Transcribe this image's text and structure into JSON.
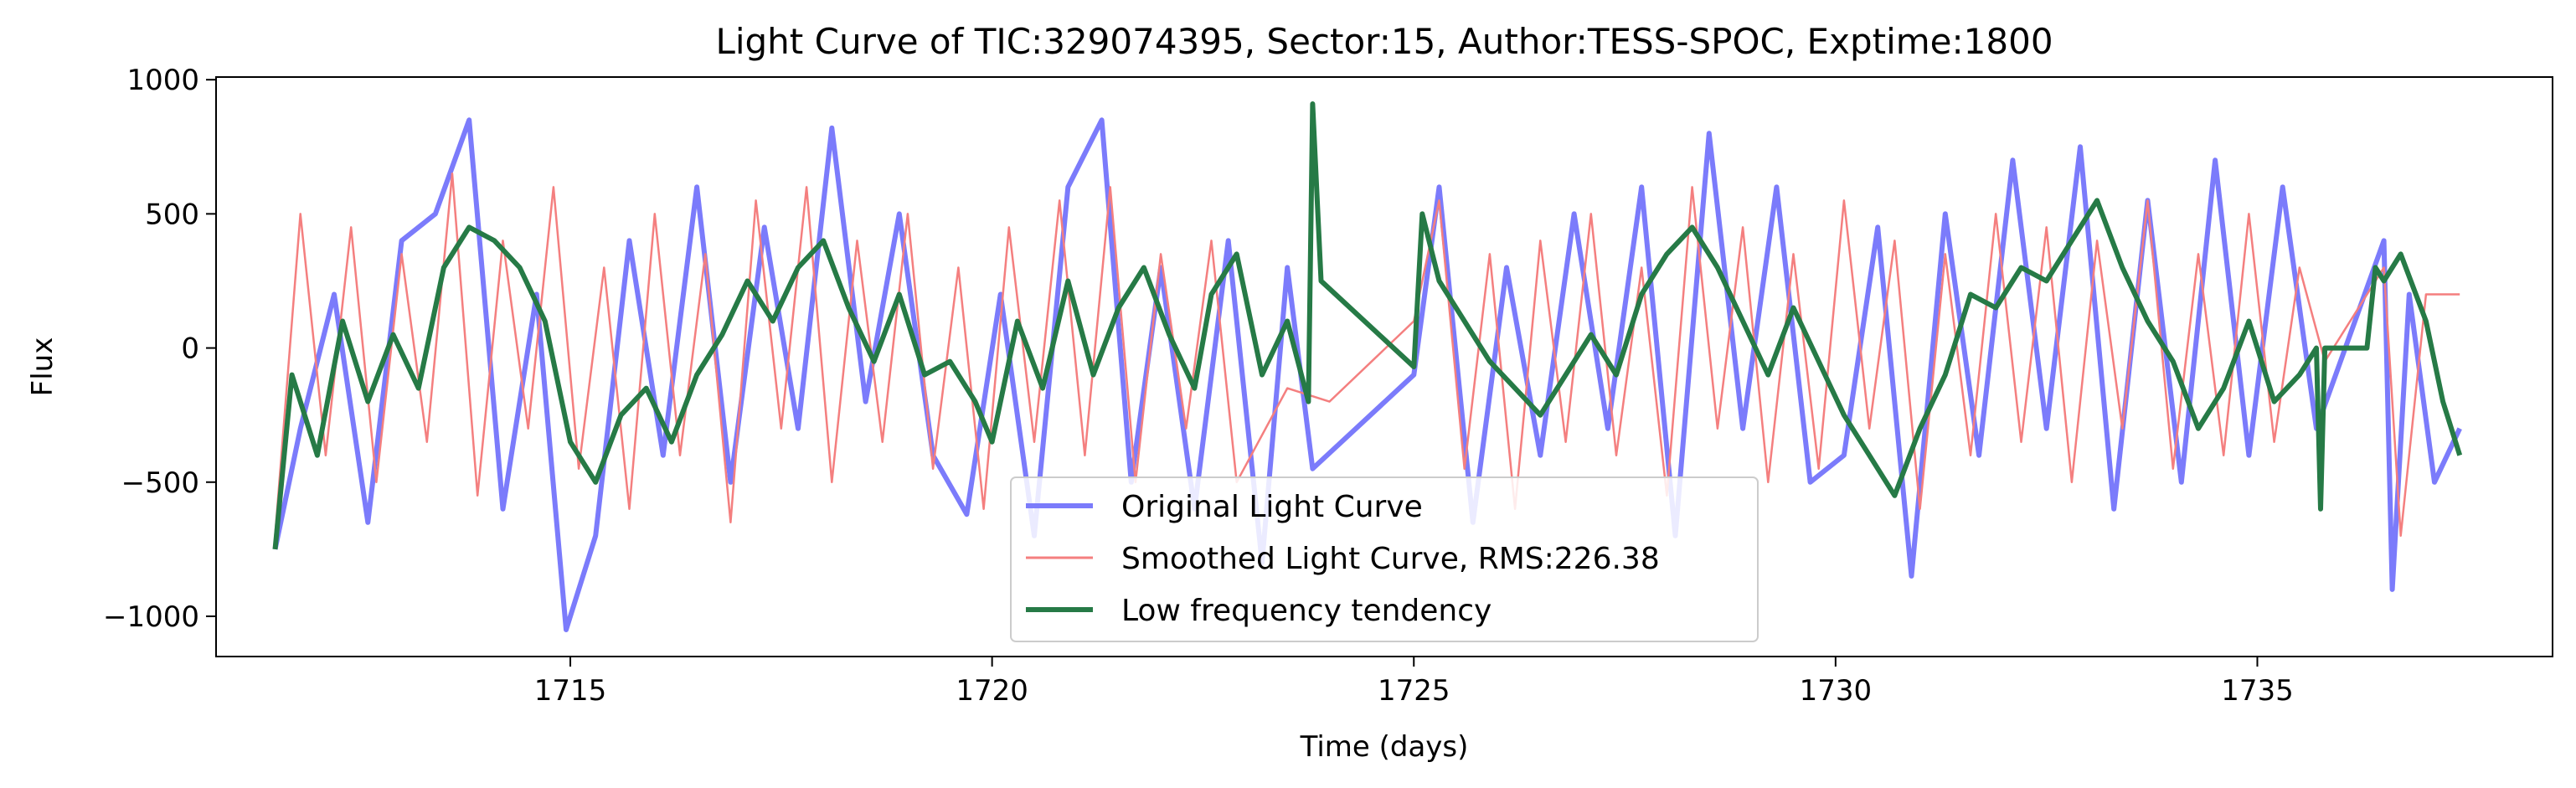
{
  "chart_data": {
    "type": "line",
    "title": "Light Curve of TIC:329074395, Sector:15, Author:TESS-SPOC, Exptime:1800",
    "xlabel": "Time (days)",
    "ylabel": "Flux",
    "xlim": [
      1710.8,
      1738.5
    ],
    "ylim": [
      -1150,
      1010
    ],
    "x_ticks": [
      1715,
      1720,
      1725,
      1730,
      1735
    ],
    "x_tick_labels": [
      "1715",
      "1720",
      "1725",
      "1730",
      "1735"
    ],
    "y_ticks": [
      -1000,
      -500,
      0,
      500,
      1000
    ],
    "y_tick_labels": [
      "−1000",
      "−500",
      "0",
      "500",
      "1000"
    ],
    "grid": false,
    "legend_position": "lower-center",
    "series": [
      {
        "name": "Original Light Curve",
        "color": "#7b7bfb",
        "x": [
          1711.5,
          1711.8,
          1712.2,
          1712.6,
          1713.0,
          1713.4,
          1713.8,
          1714.2,
          1714.6,
          1714.95,
          1715.3,
          1715.7,
          1716.1,
          1716.5,
          1716.9,
          1717.3,
          1717.7,
          1718.1,
          1718.5,
          1718.9,
          1719.3,
          1719.7,
          1720.1,
          1720.5,
          1720.9,
          1721.3,
          1721.65,
          1722.0,
          1722.4,
          1722.8,
          1723.2,
          1723.5,
          1723.8,
          1725.0,
          1725.3,
          1725.7,
          1726.1,
          1726.5,
          1726.9,
          1727.3,
          1727.7,
          1728.1,
          1728.5,
          1728.9,
          1729.3,
          1729.7,
          1730.1,
          1730.5,
          1730.9,
          1731.3,
          1731.7,
          1732.1,
          1732.5,
          1732.9,
          1733.3,
          1733.7,
          1734.1,
          1734.5,
          1734.9,
          1735.3,
          1735.7,
          1736.5,
          1736.6,
          1736.8,
          1737.1,
          1737.4
        ],
        "y": [
          -750,
          -300,
          200,
          -650,
          400,
          500,
          850,
          -600,
          200,
          -1050,
          -700,
          400,
          -400,
          600,
          -500,
          450,
          -300,
          820,
          -200,
          500,
          -400,
          -620,
          200,
          -700,
          600,
          850,
          -500,
          300,
          -600,
          400,
          -800,
          300,
          -450,
          -100,
          600,
          -650,
          300,
          -400,
          500,
          -300,
          600,
          -700,
          800,
          -300,
          600,
          -500,
          -400,
          450,
          -850,
          500,
          -400,
          700,
          -300,
          750,
          -600,
          550,
          -500,
          700,
          -400,
          600,
          -300,
          400,
          -900,
          200,
          -500,
          -300
        ]
      },
      {
        "name": "Smoothed Light Curve, RMS:226.38",
        "color": "#f47f7f",
        "x": [
          1711.5,
          1711.8,
          1712.1,
          1712.4,
          1712.7,
          1713.0,
          1713.3,
          1713.6,
          1713.9,
          1714.2,
          1714.5,
          1714.8,
          1715.1,
          1715.4,
          1715.7,
          1716.0,
          1716.3,
          1716.6,
          1716.9,
          1717.2,
          1717.5,
          1717.8,
          1718.1,
          1718.4,
          1718.7,
          1719.0,
          1719.3,
          1719.6,
          1719.9,
          1720.2,
          1720.5,
          1720.8,
          1721.1,
          1721.4,
          1721.7,
          1722.0,
          1722.3,
          1722.6,
          1722.9,
          1723.5,
          1724.0,
          1725.0,
          1725.3,
          1725.6,
          1725.9,
          1726.2,
          1726.5,
          1726.8,
          1727.1,
          1727.4,
          1727.7,
          1728.0,
          1728.3,
          1728.6,
          1728.9,
          1729.2,
          1729.5,
          1729.8,
          1730.1,
          1730.4,
          1730.7,
          1731.0,
          1731.3,
          1731.6,
          1731.9,
          1732.2,
          1732.5,
          1732.8,
          1733.1,
          1733.4,
          1733.7,
          1734.0,
          1734.3,
          1734.6,
          1734.9,
          1735.2,
          1735.5,
          1735.8,
          1736.5,
          1736.7,
          1737.0,
          1737.4
        ],
        "y": [
          -700,
          500,
          -400,
          450,
          -500,
          350,
          -350,
          650,
          -550,
          400,
          -300,
          600,
          -450,
          300,
          -600,
          500,
          -400,
          350,
          -650,
          550,
          -300,
          600,
          -500,
          400,
          -350,
          500,
          -450,
          300,
          -600,
          450,
          -350,
          550,
          -400,
          600,
          -500,
          350,
          -300,
          400,
          -500,
          -150,
          -200,
          100,
          550,
          -450,
          350,
          -600,
          400,
          -350,
          500,
          -400,
          300,
          -550,
          600,
          -300,
          450,
          -500,
          350,
          -450,
          550,
          -300,
          400,
          -600,
          350,
          -400,
          500,
          -350,
          450,
          -500,
          400,
          -300,
          550,
          -450,
          350,
          -400,
          500,
          -350,
          300,
          -50,
          300,
          -700,
          200,
          200
        ]
      },
      {
        "name": "Low frequency tendency",
        "color": "#267a46",
        "x": [
          1711.5,
          1711.7,
          1712.0,
          1712.3,
          1712.6,
          1712.9,
          1713.2,
          1713.5,
          1713.8,
          1714.1,
          1714.4,
          1714.7,
          1715.0,
          1715.3,
          1715.6,
          1715.9,
          1716.2,
          1716.5,
          1716.8,
          1717.1,
          1717.4,
          1717.7,
          1718.0,
          1718.3,
          1718.6,
          1718.9,
          1719.2,
          1719.5,
          1719.8,
          1720.0,
          1720.3,
          1720.6,
          1720.9,
          1721.2,
          1721.5,
          1721.8,
          1722.1,
          1722.4,
          1722.6,
          1722.9,
          1723.2,
          1723.5,
          1723.75,
          1723.8,
          1723.9,
          1725.0,
          1725.1,
          1725.3,
          1725.6,
          1725.9,
          1726.2,
          1726.5,
          1726.8,
          1727.1,
          1727.4,
          1727.7,
          1728.0,
          1728.3,
          1728.6,
          1728.9,
          1729.2,
          1729.5,
          1729.8,
          1730.1,
          1730.4,
          1730.7,
          1731.0,
          1731.3,
          1731.6,
          1731.9,
          1732.2,
          1732.5,
          1732.8,
          1733.1,
          1733.4,
          1733.7,
          1734.0,
          1734.3,
          1734.6,
          1734.9,
          1735.2,
          1735.5,
          1735.7,
          1735.75,
          1735.8,
          1736.3,
          1736.4,
          1736.5,
          1736.7,
          1737.0,
          1737.2,
          1737.4
        ],
        "y": [
          -750,
          -100,
          -400,
          100,
          -200,
          50,
          -150,
          300,
          450,
          400,
          300,
          100,
          -350,
          -500,
          -250,
          -150,
          -350,
          -100,
          50,
          250,
          100,
          300,
          400,
          150,
          -50,
          200,
          -100,
          -50,
          -200,
          -350,
          100,
          -150,
          250,
          -100,
          150,
          300,
          50,
          -150,
          200,
          350,
          -100,
          100,
          -200,
          910,
          250,
          -70,
          500,
          250,
          100,
          -50,
          -150,
          -250,
          -100,
          50,
          -100,
          200,
          350,
          450,
          300,
          100,
          -100,
          150,
          -50,
          -250,
          -400,
          -550,
          -300,
          -100,
          200,
          150,
          300,
          250,
          400,
          550,
          300,
          100,
          -50,
          -300,
          -150,
          100,
          -200,
          -100,
          0,
          -600,
          0,
          0,
          300,
          250,
          350,
          100,
          -200,
          -400
        ]
      }
    ]
  }
}
